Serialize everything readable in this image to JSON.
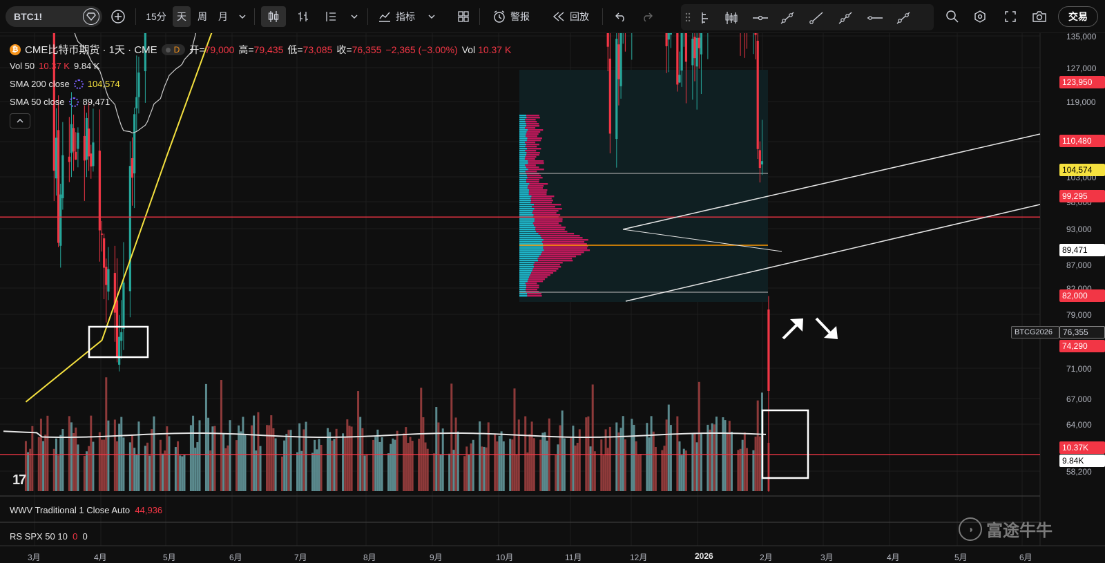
{
  "toolbar": {
    "symbol": "BTC1!",
    "intervals": [
      "15分",
      "天",
      "周",
      "月"
    ],
    "indicators_label": "指标",
    "alert_label": "警报",
    "replay_label": "回放",
    "trade_label": "交易"
  },
  "legend": {
    "title": "CME比特币期货 · 1天 · CME",
    "badge": "D",
    "open_label": "开=",
    "open": "79,000",
    "high_label": "高=",
    "high": "79,435",
    "low_label": "低=",
    "low": "73,085",
    "close_label": "收=",
    "close": "76,355",
    "change": "−2,365 (−3.00%)",
    "vol_label": "Vol",
    "vol": "10.37 K",
    "vol50_label": "Vol 50",
    "vol50_a": "10.37 K",
    "vol50_b": "9.84 K",
    "sma200_label": "SMA 200 close",
    "sma200": "104,574",
    "sma50_label": "SMA 50 close",
    "sma50": "89,471"
  },
  "panes": {
    "wwv_label": "WWV Traditional 1 Close Auto",
    "wwv_value": "44,936",
    "rs_label": "RS SPX 50 10",
    "rs_a": "0",
    "rs_b": "0"
  },
  "price_axis": [
    "135,000",
    "127,000",
    "119,000",
    "103,000",
    "98,000",
    "93,000",
    "87,000",
    "82,000",
    "79,000",
    "71,000",
    "67,000",
    "64,000",
    "58,200"
  ],
  "price_tags": {
    "l123950": "123,950",
    "l110480": "110,480",
    "sma200": "104,574",
    "l99295": "99,295",
    "sma50": "89,471",
    "l82000": "82,000",
    "contract": "BTCG2026",
    "last": "76,355",
    "l74290": "74,290",
    "vol_a": "10.37K",
    "vol_b": "9.84K"
  },
  "time_axis": [
    "3月",
    "4月",
    "5月",
    "6月",
    "7月",
    "8月",
    "9月",
    "10月",
    "11月",
    "12月",
    "2026",
    "2月",
    "3月",
    "4月",
    "5月",
    "6月"
  ],
  "watermark": "富途牛牛",
  "colors": {
    "up": "#26a69a",
    "down": "#f23645",
    "sma200": "#f5e13f",
    "sma50": "#cfcfcf",
    "hline": "#f23645"
  },
  "chart_data": {
    "type": "candlestick",
    "symbol": "BTC1!",
    "x_range": [
      "2025-02-25",
      "2026-06-30"
    ],
    "y_range": [
      70000,
      136000
    ],
    "close_path": [
      [
        "2025-02-25",
        95000
      ],
      [
        "2025-03-05",
        91000
      ],
      [
        "2025-03-12",
        82000
      ],
      [
        "2025-03-20",
        85000
      ],
      [
        "2025-03-28",
        84000
      ],
      [
        "2025-04-08",
        77000
      ],
      [
        "2025-04-15",
        84000
      ],
      [
        "2025-04-25",
        94000
      ],
      [
        "2025-05-05",
        96000
      ],
      [
        "2025-05-12",
        103000
      ],
      [
        "2025-05-22",
        110000
      ],
      [
        "2025-06-01",
        106000
      ],
      [
        "2025-06-12",
        108000
      ],
      [
        "2025-06-22",
        100000
      ],
      [
        "2025-07-01",
        107000
      ],
      [
        "2025-07-14",
        120000
      ],
      [
        "2025-07-25",
        118000
      ],
      [
        "2025-08-05",
        114000
      ],
      [
        "2025-08-14",
        123000
      ],
      [
        "2025-08-20",
        115000
      ],
      [
        "2025-09-01",
        109000
      ],
      [
        "2025-09-12",
        115000
      ],
      [
        "2025-09-22",
        113000
      ],
      [
        "2025-09-30",
        110000
      ],
      [
        "2025-10-06",
        125000
      ],
      [
        "2025-10-10",
        113000
      ],
      [
        "2025-10-20",
        110000
      ],
      [
        "2025-10-30",
        109000
      ],
      [
        "2025-11-05",
        103000
      ],
      [
        "2025-11-14",
        96000
      ],
      [
        "2025-11-21",
        85000
      ],
      [
        "2025-12-01",
        90000
      ],
      [
        "2025-12-10",
        92000
      ],
      [
        "2025-12-20",
        87000
      ],
      [
        "2025-12-30",
        88000
      ],
      [
        "2026-01-08",
        91000
      ],
      [
        "2026-01-14",
        96000
      ],
      [
        "2026-01-20",
        89000
      ],
      [
        "2026-01-26",
        88000
      ],
      [
        "2026-01-30",
        83000
      ],
      [
        "2026-02-02",
        76355
      ]
    ],
    "horizontal_levels": [
      123950,
      110480,
      99295,
      82000,
      74290
    ],
    "sma200_last": 104574,
    "sma50_last": 89471,
    "last_bar": {
      "open": 79000,
      "high": 79435,
      "low": 73085,
      "close": 76355,
      "volume": "10.37 K"
    },
    "volume_ma50": "9.84 K"
  }
}
